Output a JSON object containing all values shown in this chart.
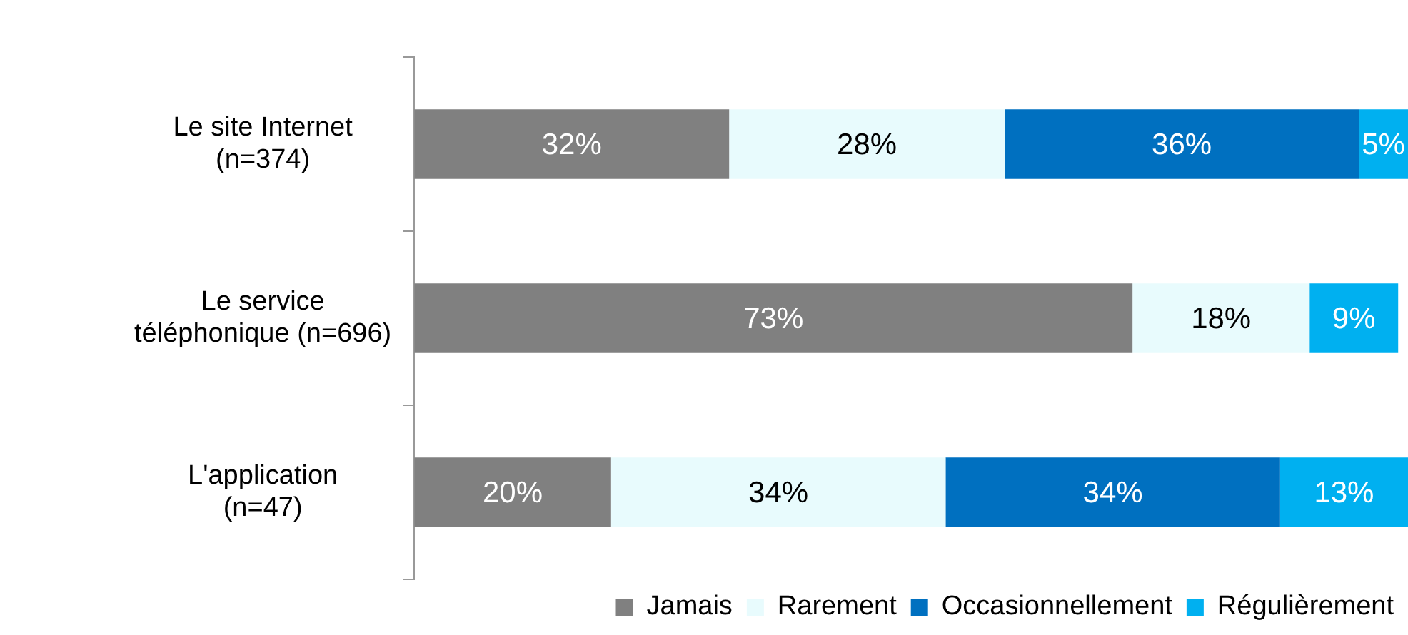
{
  "chart_data": {
    "type": "bar",
    "orientation": "horizontal",
    "stacked": true,
    "categories": [
      "Le site Internet\n(n=374)",
      "Le service\ntéléphonique (n=696)",
      "L'application\n(n=47)"
    ],
    "series": [
      {
        "name": "Jamais",
        "color": "#808080",
        "values": [
          32,
          73,
          20
        ],
        "value_labels": [
          "32%",
          "73%",
          "20%"
        ]
      },
      {
        "name": "Rarement",
        "color": "#e8fbfd",
        "values": [
          28,
          18,
          34
        ],
        "value_labels": [
          "28%",
          "18%",
          "34%"
        ]
      },
      {
        "name": "Occasionnellement",
        "color": "#0070c0",
        "values": [
          36,
          null,
          34
        ],
        "value_labels": [
          "36%",
          null,
          "34%"
        ]
      },
      {
        "name": "Régulièrement",
        "color": "#00b0f0",
        "values": [
          5,
          9,
          13
        ],
        "value_labels": [
          "5%",
          "9%",
          "13%"
        ]
      }
    ],
    "legend": "bottom right"
  }
}
